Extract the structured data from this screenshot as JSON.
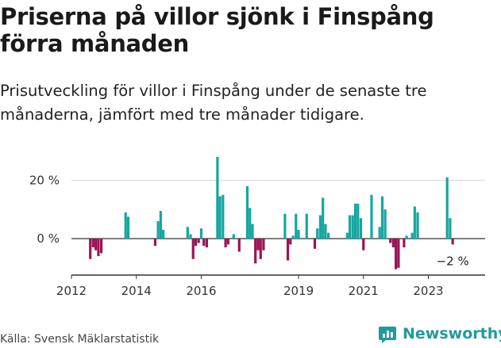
{
  "header": {
    "title": "Priserna på villor sjönk i Finspång förra månaden",
    "subtitle": "Prisutveckling för villor i Finspång under de senaste tre månaderna, jämfört med tre månader tidigare."
  },
  "footer": {
    "source": "Källa: Svensk Mäklarstatistik",
    "brand": "Newsworthy"
  },
  "colors": {
    "positive": "#16a6a0",
    "negative": "#9c1456",
    "axis": "#333333",
    "grid": "#d9d9d9"
  },
  "chart_data": {
    "type": "bar",
    "title": "Priserna på villor sjönk i Finspång förra månaden",
    "ylabel": "",
    "xlabel": "",
    "ylim": [
      -12,
      28
    ],
    "y_ticks": [
      0,
      20
    ],
    "y_tick_labels": [
      "0 %",
      "20 %"
    ],
    "x_range": [
      2012.0,
      2024.75
    ],
    "x_ticks": [
      2012,
      2014,
      2016,
      2019,
      2021,
      2023
    ],
    "x_tick_labels": [
      "2012",
      "2014",
      "2016",
      "2019",
      "2021",
      "2023"
    ],
    "annotation": {
      "label": "−2 %",
      "x": 2023.75,
      "y": -2
    },
    "series": [
      {
        "name": "Prisutveckling",
        "points": [
          {
            "x": 2012.58,
            "y": -7
          },
          {
            "x": 2012.67,
            "y": -3
          },
          {
            "x": 2012.75,
            "y": -4
          },
          {
            "x": 2012.83,
            "y": -6
          },
          {
            "x": 2012.92,
            "y": -5
          },
          {
            "x": 2013.67,
            "y": 9
          },
          {
            "x": 2013.75,
            "y": 7.5
          },
          {
            "x": 2014.58,
            "y": -2.5
          },
          {
            "x": 2014.67,
            "y": 6
          },
          {
            "x": 2014.75,
            "y": 9.5
          },
          {
            "x": 2014.83,
            "y": 3
          },
          {
            "x": 2015.58,
            "y": 4
          },
          {
            "x": 2015.67,
            "y": 1.5
          },
          {
            "x": 2015.75,
            "y": -7
          },
          {
            "x": 2015.83,
            "y": -2.5
          },
          {
            "x": 2015.92,
            "y": -1.5
          },
          {
            "x": 2016.0,
            "y": 3.5
          },
          {
            "x": 2016.08,
            "y": -2.5
          },
          {
            "x": 2016.17,
            "y": -3
          },
          {
            "x": 2016.5,
            "y": 28
          },
          {
            "x": 2016.58,
            "y": 14.5
          },
          {
            "x": 2016.67,
            "y": 15
          },
          {
            "x": 2016.75,
            "y": -3
          },
          {
            "x": 2016.83,
            "y": -2
          },
          {
            "x": 2017.0,
            "y": 1.5
          },
          {
            "x": 2017.17,
            "y": -4.5
          },
          {
            "x": 2017.42,
            "y": 18
          },
          {
            "x": 2017.5,
            "y": 10.5
          },
          {
            "x": 2017.58,
            "y": 5
          },
          {
            "x": 2017.67,
            "y": -8.5
          },
          {
            "x": 2017.75,
            "y": -4
          },
          {
            "x": 2017.83,
            "y": -7
          },
          {
            "x": 2017.92,
            "y": -4
          },
          {
            "x": 2018.58,
            "y": 8.5
          },
          {
            "x": 2018.67,
            "y": -7.5
          },
          {
            "x": 2018.75,
            "y": -2
          },
          {
            "x": 2018.83,
            "y": 1
          },
          {
            "x": 2018.92,
            "y": 8.5
          },
          {
            "x": 2019.0,
            "y": 3
          },
          {
            "x": 2019.25,
            "y": 8.5
          },
          {
            "x": 2019.5,
            "y": -3.5
          },
          {
            "x": 2019.58,
            "y": 3.5
          },
          {
            "x": 2019.67,
            "y": 8
          },
          {
            "x": 2019.75,
            "y": 14
          },
          {
            "x": 2019.83,
            "y": 5
          },
          {
            "x": 2019.92,
            "y": 2
          },
          {
            "x": 2020.5,
            "y": 2
          },
          {
            "x": 2020.58,
            "y": 8
          },
          {
            "x": 2020.67,
            "y": 8
          },
          {
            "x": 2020.75,
            "y": 12
          },
          {
            "x": 2020.83,
            "y": 12
          },
          {
            "x": 2020.92,
            "y": 7
          },
          {
            "x": 2021.0,
            "y": -4
          },
          {
            "x": 2021.25,
            "y": 15
          },
          {
            "x": 2021.5,
            "y": 4
          },
          {
            "x": 2021.58,
            "y": 14.5
          },
          {
            "x": 2021.67,
            "y": 10
          },
          {
            "x": 2021.83,
            "y": -1.5
          },
          {
            "x": 2021.92,
            "y": -3
          },
          {
            "x": 2022.0,
            "y": -10.5
          },
          {
            "x": 2022.08,
            "y": -10
          },
          {
            "x": 2022.25,
            "y": -3
          },
          {
            "x": 2022.33,
            "y": 1
          },
          {
            "x": 2022.5,
            "y": 2
          },
          {
            "x": 2022.58,
            "y": 11
          },
          {
            "x": 2022.67,
            "y": 9
          },
          {
            "x": 2023.58,
            "y": 21
          },
          {
            "x": 2023.67,
            "y": 7
          },
          {
            "x": 2023.75,
            "y": -2
          }
        ]
      }
    ]
  }
}
